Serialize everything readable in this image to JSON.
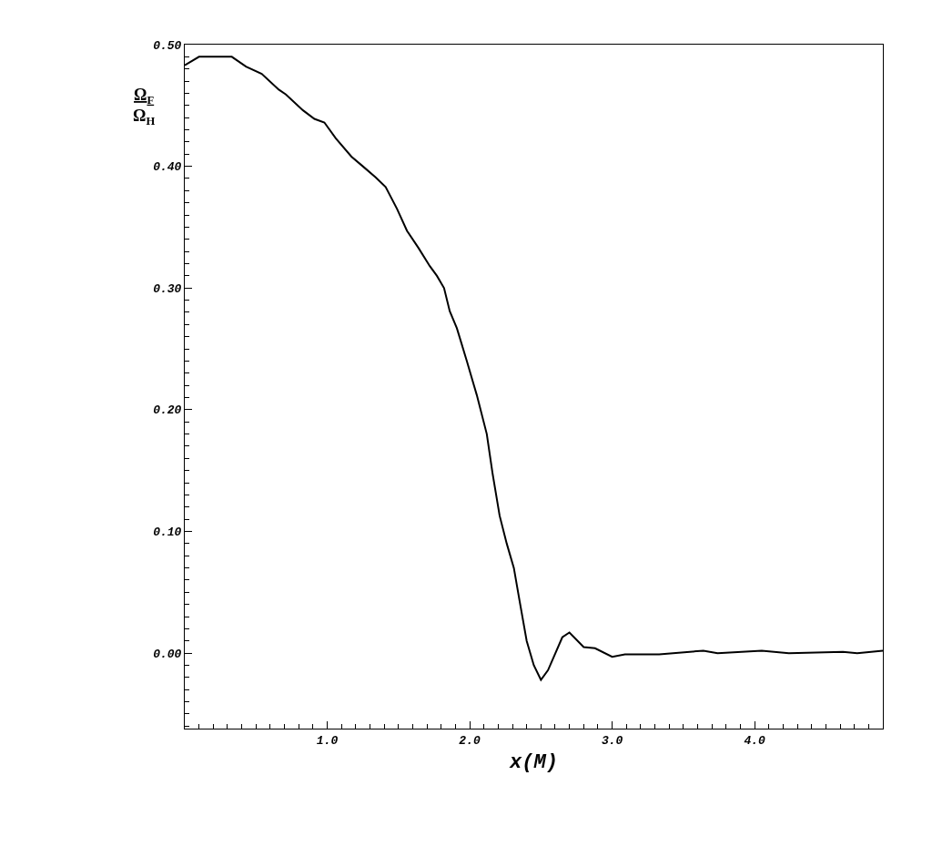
{
  "chart_data": {
    "type": "line",
    "xlabel": "x(M)",
    "ylabel": "Ω$_{F}$\nΩ$_{H}$",
    "xlim": [
      0,
      4.9
    ],
    "ylim": [
      -0.062,
      0.5
    ],
    "xticks": [
      {
        "value": 0.1,
        "label": null
      },
      {
        "value": 0.2,
        "label": null
      },
      {
        "value": 0.3,
        "label": null
      },
      {
        "value": 0.4,
        "label": null
      },
      {
        "value": 0.5,
        "label": null
      },
      {
        "value": 0.6,
        "label": null
      },
      {
        "value": 0.7,
        "label": null
      },
      {
        "value": 0.8,
        "label": null
      },
      {
        "value": 0.9,
        "label": null
      },
      {
        "value": 1.0,
        "label": "1.0"
      },
      {
        "value": 1.1,
        "label": null
      },
      {
        "value": 1.2,
        "label": null
      },
      {
        "value": 1.3,
        "label": null
      },
      {
        "value": 1.4,
        "label": null
      },
      {
        "value": 1.5,
        "label": null
      },
      {
        "value": 1.6,
        "label": null
      },
      {
        "value": 1.7,
        "label": null
      },
      {
        "value": 1.8,
        "label": null
      },
      {
        "value": 1.9,
        "label": null
      },
      {
        "value": 2.0,
        "label": "2.0"
      },
      {
        "value": 2.1,
        "label": null
      },
      {
        "value": 2.2,
        "label": null
      },
      {
        "value": 2.3,
        "label": null
      },
      {
        "value": 2.4,
        "label": null
      },
      {
        "value": 2.5,
        "label": null
      },
      {
        "value": 2.6,
        "label": null
      },
      {
        "value": 2.7,
        "label": null
      },
      {
        "value": 2.8,
        "label": null
      },
      {
        "value": 2.9,
        "label": null
      },
      {
        "value": 3.0,
        "label": "3.0"
      },
      {
        "value": 3.1,
        "label": null
      },
      {
        "value": 3.2,
        "label": null
      },
      {
        "value": 3.3,
        "label": null
      },
      {
        "value": 3.4,
        "label": null
      },
      {
        "value": 3.5,
        "label": null
      },
      {
        "value": 3.6,
        "label": null
      },
      {
        "value": 3.7,
        "label": null
      },
      {
        "value": 3.8,
        "label": null
      },
      {
        "value": 3.9,
        "label": null
      },
      {
        "value": 4.0,
        "label": "4.0"
      },
      {
        "value": 4.1,
        "label": null
      },
      {
        "value": 4.2,
        "label": null
      },
      {
        "value": 4.3,
        "label": null
      },
      {
        "value": 4.4,
        "label": null
      },
      {
        "value": 4.5,
        "label": null
      },
      {
        "value": 4.6,
        "label": null
      },
      {
        "value": 4.7,
        "label": null
      },
      {
        "value": 4.8,
        "label": null
      }
    ],
    "yticks": [
      {
        "value": -0.06,
        "label": null
      },
      {
        "value": -0.05,
        "label": null
      },
      {
        "value": -0.04,
        "label": null
      },
      {
        "value": -0.03,
        "label": null
      },
      {
        "value": -0.02,
        "label": null
      },
      {
        "value": -0.01,
        "label": null
      },
      {
        "value": 0.0,
        "label": "0.00"
      },
      {
        "value": 0.01,
        "label": null
      },
      {
        "value": 0.02,
        "label": null
      },
      {
        "value": 0.03,
        "label": null
      },
      {
        "value": 0.04,
        "label": null
      },
      {
        "value": 0.05,
        "label": null
      },
      {
        "value": 0.06,
        "label": null
      },
      {
        "value": 0.07,
        "label": null
      },
      {
        "value": 0.08,
        "label": null
      },
      {
        "value": 0.09,
        "label": null
      },
      {
        "value": 0.1,
        "label": "0.10"
      },
      {
        "value": 0.11,
        "label": null
      },
      {
        "value": 0.12,
        "label": null
      },
      {
        "value": 0.13,
        "label": null
      },
      {
        "value": 0.14,
        "label": null
      },
      {
        "value": 0.15,
        "label": null
      },
      {
        "value": 0.16,
        "label": null
      },
      {
        "value": 0.17,
        "label": null
      },
      {
        "value": 0.18,
        "label": null
      },
      {
        "value": 0.19,
        "label": null
      },
      {
        "value": 0.2,
        "label": "0.20"
      },
      {
        "value": 0.21,
        "label": null
      },
      {
        "value": 0.22,
        "label": null
      },
      {
        "value": 0.23,
        "label": null
      },
      {
        "value": 0.24,
        "label": null
      },
      {
        "value": 0.25,
        "label": null
      },
      {
        "value": 0.26,
        "label": null
      },
      {
        "value": 0.27,
        "label": null
      },
      {
        "value": 0.28,
        "label": null
      },
      {
        "value": 0.29,
        "label": null
      },
      {
        "value": 0.3,
        "label": "0.30"
      },
      {
        "value": 0.31,
        "label": null
      },
      {
        "value": 0.32,
        "label": null
      },
      {
        "value": 0.33,
        "label": null
      },
      {
        "value": 0.34,
        "label": null
      },
      {
        "value": 0.35,
        "label": null
      },
      {
        "value": 0.36,
        "label": null
      },
      {
        "value": 0.37,
        "label": null
      },
      {
        "value": 0.38,
        "label": null
      },
      {
        "value": 0.39,
        "label": null
      },
      {
        "value": 0.4,
        "label": "0.40"
      },
      {
        "value": 0.41,
        "label": null
      },
      {
        "value": 0.42,
        "label": null
      },
      {
        "value": 0.43,
        "label": null
      },
      {
        "value": 0.44,
        "label": null
      },
      {
        "value": 0.45,
        "label": null
      },
      {
        "value": 0.46,
        "label": null
      },
      {
        "value": 0.47,
        "label": null
      },
      {
        "value": 0.48,
        "label": null
      },
      {
        "value": 0.49,
        "label": null
      },
      {
        "value": 0.5,
        "label": "0.50"
      }
    ],
    "grid": false,
    "marker": "none",
    "line_style": "solid",
    "series": [
      {
        "color": "#000000",
        "x": [
          0.0,
          0.1,
          0.33,
          0.43,
          0.54,
          0.66,
          0.71,
          0.83,
          0.91,
          0.98,
          1.06,
          1.17,
          1.25,
          1.34,
          1.41,
          1.49,
          1.56,
          1.64,
          1.72,
          1.77,
          1.82,
          1.86,
          1.91,
          1.98,
          2.03,
          2.05,
          2.12,
          2.16,
          2.21,
          2.26,
          2.31,
          2.35,
          2.4,
          2.45,
          2.5,
          2.55,
          2.65,
          2.7,
          2.8,
          2.88,
          3.0,
          3.09,
          3.33,
          3.64,
          3.74,
          4.05,
          4.24,
          4.62,
          4.72,
          4.9
        ],
        "values": [
          0.483,
          0.49,
          0.49,
          0.482,
          0.476,
          0.463,
          0.459,
          0.446,
          0.439,
          0.436,
          0.423,
          0.408,
          0.4,
          0.391,
          0.383,
          0.365,
          0.347,
          0.333,
          0.318,
          0.31,
          0.3,
          0.281,
          0.267,
          0.24,
          0.22,
          0.212,
          0.18,
          0.148,
          0.113,
          0.09,
          0.07,
          0.043,
          0.01,
          -0.01,
          -0.022,
          -0.014,
          0.013,
          0.017,
          0.005,
          0.004,
          -0.003,
          -0.001,
          -0.001,
          0.002,
          0.0,
          0.002,
          0.0,
          0.001,
          0.0,
          0.002
        ]
      }
    ]
  }
}
